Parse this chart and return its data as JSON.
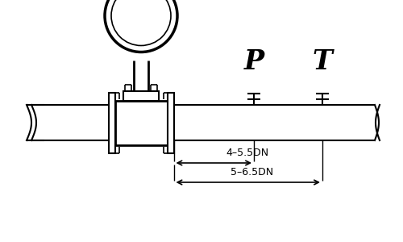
{
  "fig_width": 5.0,
  "fig_height": 3.0,
  "dpi": 100,
  "bg_color": "#ffffff",
  "lc": "#000000",
  "P_label": "P",
  "T_label": "T",
  "dim1_text": "4–5.5DN",
  "dim2_text": "5–6.5DN"
}
